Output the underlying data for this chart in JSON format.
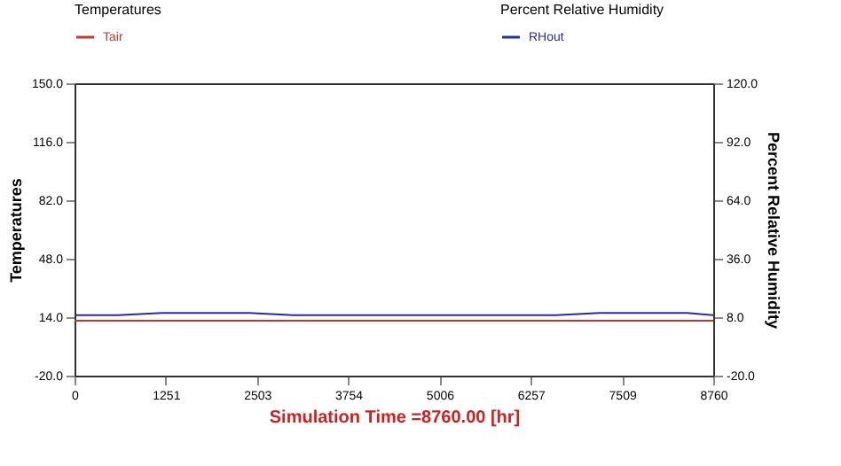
{
  "chart_data": {
    "type": "line",
    "xlabel": "Simulation Time =8760.00 [hr]",
    "ylabel": "Temperatures",
    "y2label": "Percent Relative Humidity",
    "legend": "top",
    "x": [
      0,
      600,
      1200,
      1800,
      2400,
      3000,
      3600,
      4200,
      4800,
      5400,
      6000,
      6600,
      7200,
      7800,
      8400,
      8760
    ],
    "series": [
      {
        "name": "Tair",
        "color": "#c0392b",
        "values": [
          12,
          12,
          12,
          12,
          12,
          12,
          12,
          12,
          12,
          12,
          12,
          12,
          12,
          12,
          12,
          12
        ]
      },
      {
        "name": "RHout",
        "color": "#2b2b9e",
        "axis": "y2",
        "values": [
          9,
          9,
          10,
          10,
          10,
          9,
          9,
          9,
          9,
          9,
          9,
          9,
          10,
          10,
          10,
          9
        ]
      }
    ],
    "xlim": [
      0,
      8760
    ],
    "xticks": [
      0,
      {
        "value": 1251.43,
        "label": "1251"
      },
      {
        "value": 2502.86,
        "label": "2503"
      },
      {
        "value": 3754.29,
        "label": "3754"
      },
      {
        "value": 5005.71,
        "label": "5006"
      },
      {
        "value": 6257.14,
        "label": "6257"
      },
      {
        "value": 7508.57,
        "label": "7509"
      },
      8760
    ],
    "ylim": [
      -20,
      150
    ],
    "yticks": [
      {
        "value": -20,
        "label": "-20.0"
      },
      {
        "value": 14,
        "label": "14.0"
      },
      {
        "value": 48,
        "label": "48.0"
      },
      {
        "value": 82,
        "label": "82.0"
      },
      {
        "value": 116,
        "label": "116.0"
      },
      {
        "value": 150,
        "label": "150.0"
      }
    ],
    "y2lim": [
      -20,
      120
    ],
    "y2ticks": [
      {
        "value": -20,
        "label": "-20.0"
      },
      {
        "value": 8,
        "label": "8.0"
      },
      {
        "value": 36,
        "label": "36.0"
      },
      {
        "value": 64,
        "label": "64.0"
      },
      {
        "value": 92,
        "label": "92.0"
      },
      {
        "value": 120,
        "label": "120.0"
      }
    ],
    "legend_title": [
      "Temperatures",
      "Percent Relative Humidity"
    ],
    "grid": false
  }
}
